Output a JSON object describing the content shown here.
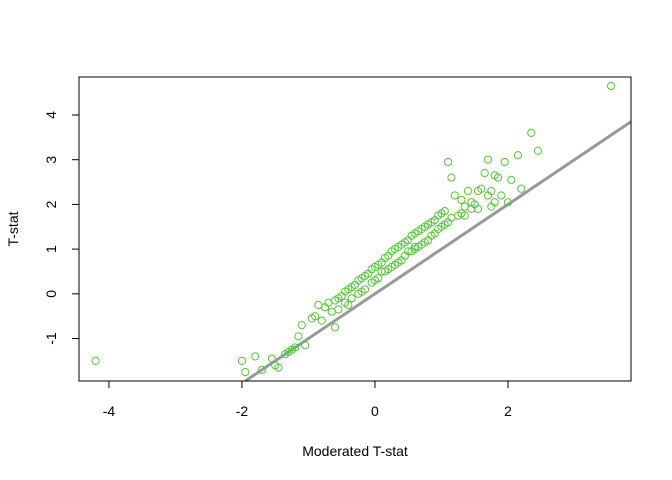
{
  "chart_data": {
    "type": "scatter",
    "title": "",
    "xlabel": "Moderated T-stat",
    "ylabel": "T-stat",
    "xlim": [
      -4.45,
      3.85
    ],
    "ylim": [
      -1.95,
      4.85
    ],
    "x_ticks": [
      -4,
      -2,
      0,
      2
    ],
    "x_tick_labels": [
      "-4",
      "-2",
      "0",
      "2"
    ],
    "y_ticks": [
      -1,
      0,
      1,
      2,
      3,
      4
    ],
    "y_tick_labels": [
      "-1",
      "0",
      "1",
      "2",
      "3",
      "4"
    ],
    "grid": false,
    "legend": "none",
    "colors": {
      "points": "#55c63a",
      "reference_line": "#999999",
      "axis": "#000000"
    },
    "reference_line": {
      "type": "abline",
      "intercept": 0,
      "slope": 1
    },
    "series": [
      {
        "marker": "open-circle",
        "x": [
          -4.2,
          3.55,
          2.35,
          2.45,
          1.1,
          1.7,
          1.15,
          1.8,
          1.85,
          1.95,
          2.15,
          2.05,
          2.2,
          2.0,
          1.6,
          1.65,
          1.9,
          1.75,
          1.3,
          1.4,
          1.5,
          1.2,
          1.35,
          1.45,
          1.55,
          1.05,
          1.0,
          0.95,
          0.9,
          0.8,
          1.25,
          -2.0,
          -1.95,
          -1.8,
          -1.7,
          -1.55,
          -1.5,
          -1.45,
          -1.3,
          -1.25,
          -1.35,
          -1.2,
          -1.15,
          -1.05,
          -0.8,
          -1.1,
          -0.95,
          -0.9,
          -0.85,
          -0.75,
          -0.7,
          -0.6,
          -0.55,
          -0.5,
          -0.45,
          -0.4,
          -0.35,
          -0.3,
          -0.25,
          -0.2,
          -0.15,
          -0.1,
          -0.05,
          0.0,
          0.05,
          0.1,
          0.15,
          0.2,
          0.25,
          0.3,
          0.35,
          0.4,
          0.45,
          0.5,
          0.55,
          0.6,
          0.65,
          0.7,
          0.75,
          0.85,
          -0.65,
          -0.55,
          -0.45,
          -0.35,
          -0.25,
          -0.15,
          -0.05,
          0.05,
          0.15,
          0.25,
          0.35,
          0.45,
          0.55,
          0.65,
          0.75,
          0.85,
          0.95,
          1.05,
          1.15,
          1.3,
          1.45,
          -0.4,
          -0.2,
          0.0,
          0.2,
          0.4,
          0.6,
          0.8,
          1.0,
          0.3,
          0.5,
          0.7,
          0.9,
          1.1,
          -0.6,
          0.1,
          0.6,
          1.35,
          1.7,
          1.75,
          1.55,
          1.8
        ],
        "y": [
          -1.5,
          4.65,
          3.6,
          3.2,
          2.95,
          3.0,
          2.6,
          2.65,
          2.6,
          2.95,
          3.1,
          2.55,
          2.35,
          2.05,
          2.35,
          2.7,
          2.2,
          2.3,
          2.1,
          2.3,
          2.0,
          2.2,
          1.95,
          2.05,
          1.9,
          1.85,
          1.8,
          1.75,
          1.65,
          1.55,
          1.75,
          -1.5,
          -1.75,
          -1.4,
          -1.7,
          -1.45,
          -1.6,
          -1.65,
          -1.3,
          -1.25,
          -1.35,
          -1.2,
          -0.95,
          -1.15,
          -0.6,
          -0.7,
          -0.55,
          -0.5,
          -0.25,
          -0.3,
          -0.2,
          -0.15,
          -0.1,
          -0.05,
          0.05,
          0.1,
          0.15,
          0.2,
          0.3,
          0.35,
          0.4,
          0.45,
          0.55,
          0.6,
          0.65,
          0.7,
          0.8,
          0.85,
          0.95,
          1.0,
          1.05,
          1.1,
          1.15,
          1.2,
          1.3,
          1.35,
          1.4,
          1.45,
          1.5,
          1.6,
          -0.4,
          -0.35,
          -0.2,
          -0.1,
          0.0,
          0.1,
          0.25,
          0.35,
          0.5,
          0.6,
          0.7,
          0.85,
          0.95,
          1.05,
          1.15,
          1.3,
          1.45,
          1.55,
          1.7,
          1.8,
          1.9,
          -0.25,
          0.05,
          0.3,
          0.55,
          0.75,
          1.0,
          1.2,
          1.5,
          0.65,
          0.95,
          1.1,
          1.35,
          1.6,
          -0.75,
          0.5,
          1.05,
          1.75,
          2.2,
          1.95,
          2.3,
          2.05
        ]
      }
    ]
  }
}
